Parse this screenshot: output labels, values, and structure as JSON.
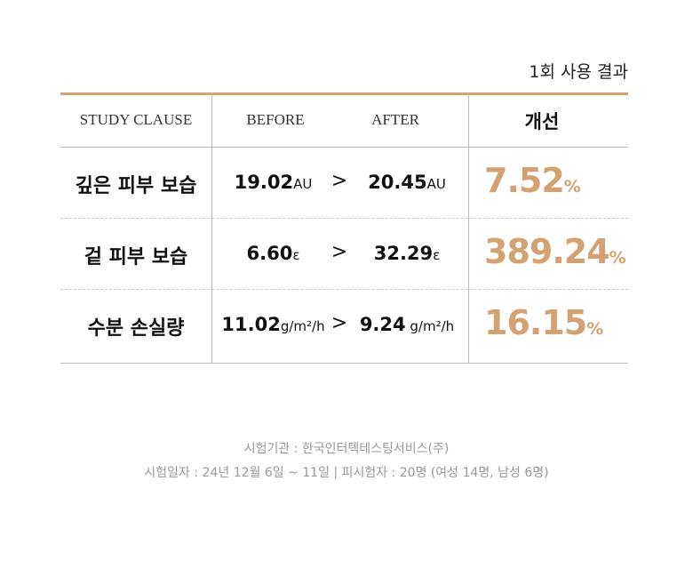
{
  "caption": "1회 사용 결과",
  "table": {
    "headers": [
      "STUDY CLAUSE",
      "BEFORE",
      "AFTER",
      "개선"
    ],
    "comparison_symbol": ">",
    "improvement_unit": "%",
    "rows": [
      {
        "label": "깊은 피부 보습",
        "before": "19.02",
        "before_unit": "AU",
        "after": "20.45",
        "after_unit": "AU",
        "improvement": "7.52"
      },
      {
        "label": "겉 피부 보습",
        "before": "6.60",
        "before_unit": "ε",
        "after": "32.29",
        "after_unit": "ε",
        "improvement": "389.24"
      },
      {
        "label": "수분 손실량",
        "before": "11.02",
        "before_unit": "g/m²/h",
        "after": "9.24",
        "after_unit": " g/m²/h",
        "improvement": "16.15"
      }
    ]
  },
  "footer": [
    "시험기관 : 한국인터텍테스팅서비스(주)",
    "시험일자 : 24년 12월 6일 ~ 11일 | 피시험자 : 20명 (여성 14명, 남성 6명)"
  ]
}
